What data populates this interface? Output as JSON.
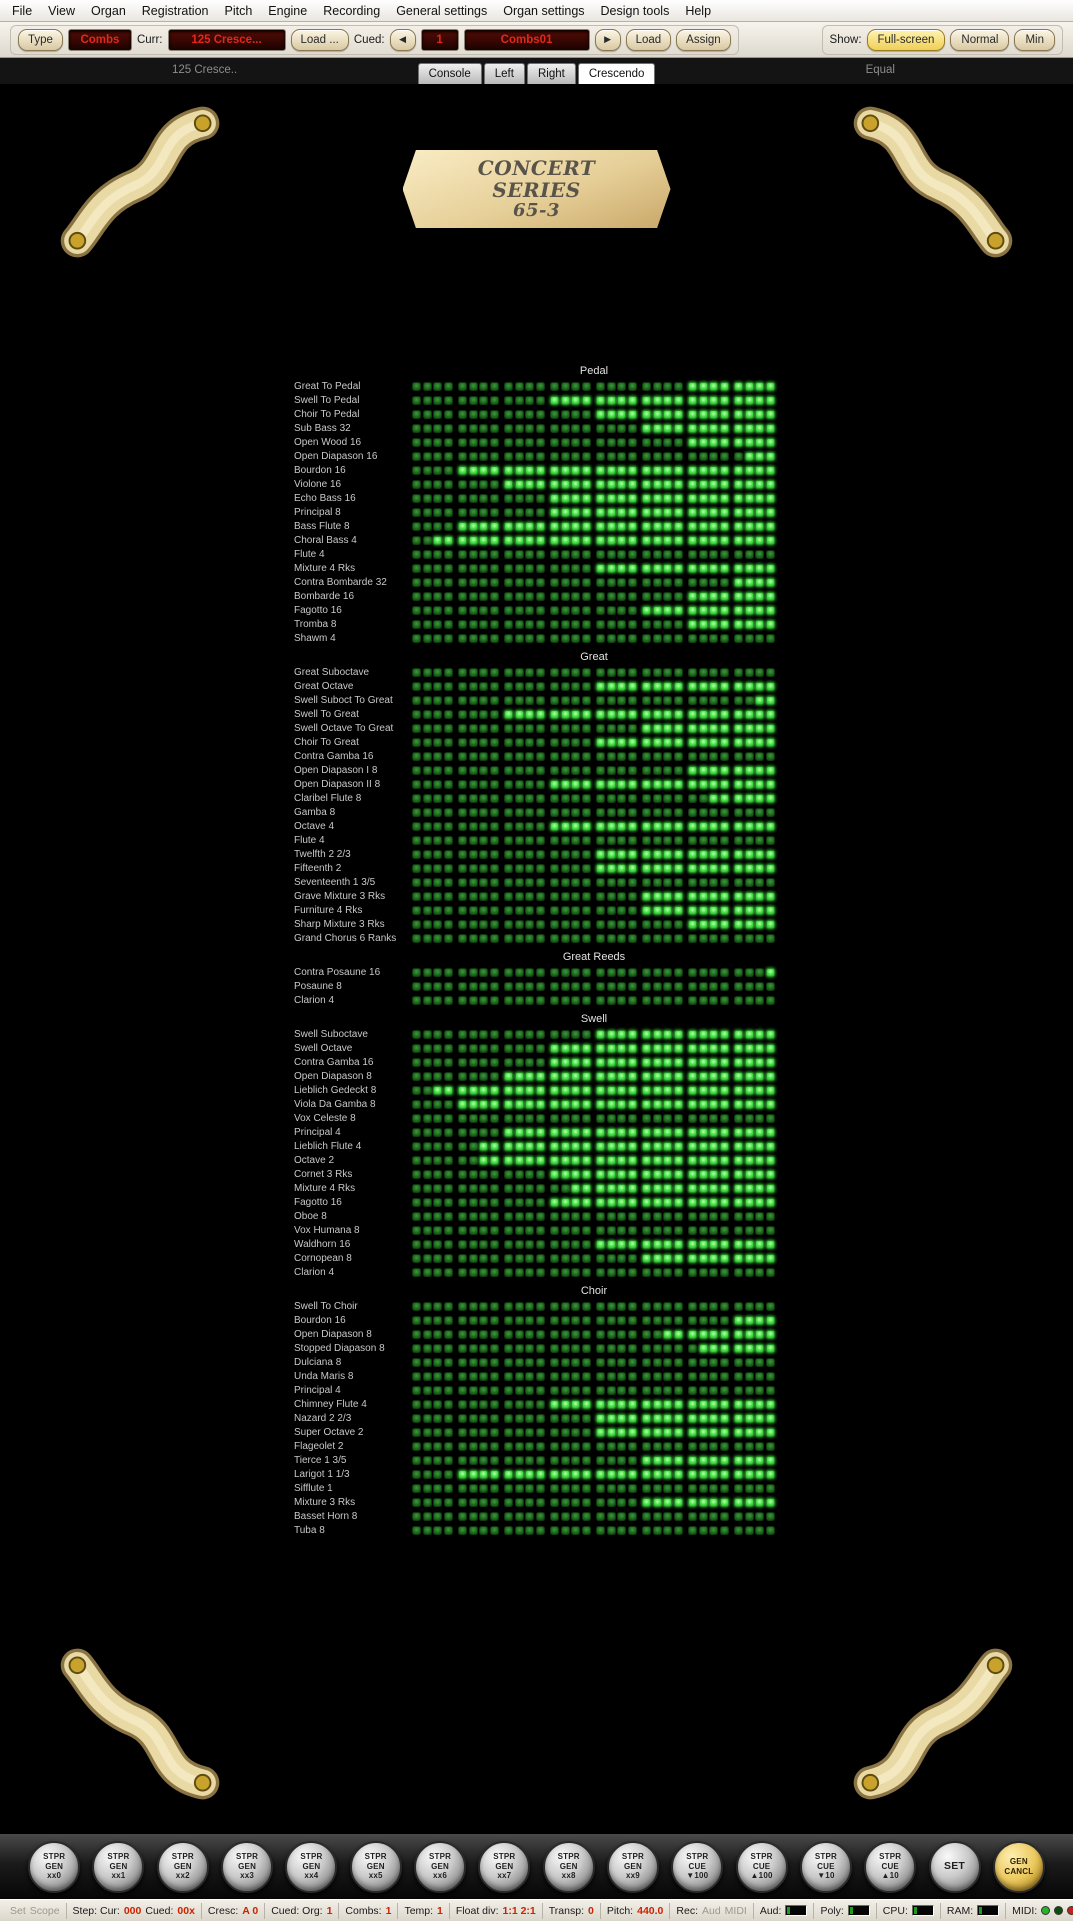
{
  "menu": {
    "items": [
      "File",
      "View",
      "Organ",
      "Registration",
      "Pitch",
      "Engine",
      "Recording",
      "General settings",
      "Organ settings",
      "Design tools",
      "Help"
    ]
  },
  "toolbar": {
    "type_button": "Type",
    "mode_display": "Combs",
    "curr_label": "Curr:",
    "curr_value": "125 Cresce...",
    "load_browse_button": "Load ...",
    "cued_label": "Cued:",
    "prev_icon": "◀",
    "cued_number": "1",
    "cued_name": "Combs01",
    "next_icon": "▶",
    "load_button": "Load",
    "assign_button": "Assign",
    "show_label": "Show:",
    "show_options": [
      "Full-screen",
      "Normal",
      "Min"
    ],
    "show_selected_index": 0
  },
  "tabbar": {
    "left_text": "125 Cresce..",
    "tabs": [
      "Console",
      "Left",
      "Right",
      "Crescendo"
    ],
    "selected": "Crescendo",
    "right_text": "Equal"
  },
  "plaque": {
    "lines": [
      "CONCERT",
      "SERIES",
      "65-3"
    ]
  },
  "crescendo": {
    "stages": 32,
    "on_color": "#52e852",
    "off_color": "#1f6b1f",
    "sections": [
      {
        "name": "Pedal",
        "stops": [
          {
            "label": "Great To Pedal",
            "on_from": 25
          },
          {
            "label": "Swell To Pedal",
            "on_from": 13
          },
          {
            "label": "Choir To Pedal",
            "on_from": 17
          },
          {
            "label": "Sub Bass 32",
            "on_from": 21
          },
          {
            "label": "Open Wood 16",
            "on_from": 25
          },
          {
            "label": "Open Diapason 16",
            "on_from": 30
          },
          {
            "label": "Bourdon 16",
            "on_from": 5
          },
          {
            "label": "Violone 16",
            "on_from": 9
          },
          {
            "label": "Echo Bass 16",
            "on_from": 13
          },
          {
            "label": "Principal 8",
            "on_from": 13
          },
          {
            "label": "Bass Flute 8",
            "on_from": 5
          },
          {
            "label": "Choral Bass 4",
            "on_from": 3
          },
          {
            "label": "Flute 4",
            "on_from": 0
          },
          {
            "label": "Mixture 4 Rks",
            "on_from": 17
          },
          {
            "label": "Contra Bombarde 32",
            "on_from": 29
          },
          {
            "label": "Bombarde 16",
            "on_from": 25
          },
          {
            "label": "Fagotto 16",
            "on_from": 21
          },
          {
            "label": "Tromba 8",
            "on_from": 25
          },
          {
            "label": "Shawm 4",
            "on_from": 0
          }
        ]
      },
      {
        "name": "Great",
        "stops": [
          {
            "label": "Great Suboctave",
            "on_from": 0
          },
          {
            "label": "Great Octave",
            "on_from": 17
          },
          {
            "label": "Swell Suboct To Great",
            "on_from": 31
          },
          {
            "label": "Swell To Great",
            "on_from": 9
          },
          {
            "label": "Swell Octave To Great",
            "on_from": 21
          },
          {
            "label": "Choir To Great",
            "on_from": 17
          },
          {
            "label": "Contra Gamba 16",
            "on_from": 0
          },
          {
            "label": "Open Diapason I 8",
            "on_from": 25
          },
          {
            "label": "Open Diapason II 8",
            "on_from": 13
          },
          {
            "label": "Claribel Flute 8",
            "on_from": 27
          },
          {
            "label": "Gamba 8",
            "on_from": 0
          },
          {
            "label": "Octave 4",
            "on_from": 13
          },
          {
            "label": "Flute 4",
            "on_from": 0
          },
          {
            "label": "Twelfth 2 2/3",
            "on_from": 17
          },
          {
            "label": "Fifteenth 2",
            "on_from": 17
          },
          {
            "label": "Seventeenth 1 3/5",
            "on_from": 0
          },
          {
            "label": "Grave Mixture 3 Rks",
            "on_from": 21
          },
          {
            "label": "Furniture 4 Rks",
            "on_from": 21
          },
          {
            "label": "Sharp Mixture 3 Rks",
            "on_from": 25
          },
          {
            "label": "Grand Chorus 6 Ranks",
            "on_from": 0
          }
        ]
      },
      {
        "name": "Great Reeds",
        "stops": [
          {
            "label": "Contra Posaune 16",
            "on_from": 32
          },
          {
            "label": "Posaune 8",
            "on_from": 0
          },
          {
            "label": "Clarion 4",
            "on_from": 0
          }
        ]
      },
      {
        "name": "Swell",
        "stops": [
          {
            "label": "Swell Suboctave",
            "on_from": 17
          },
          {
            "label": "Swell Octave",
            "on_from": 13
          },
          {
            "label": "Contra Gamba 16",
            "on_from": 13
          },
          {
            "label": "Open Diapason 8",
            "on_from": 9
          },
          {
            "label": "Lieblich Gedeckt 8",
            "on_from": 3
          },
          {
            "label": "Viola Da Gamba 8",
            "on_from": 5
          },
          {
            "label": "Vox Celeste 8",
            "on_from": 0
          },
          {
            "label": "Principal 4",
            "on_from": 9
          },
          {
            "label": "Lieblich Flute 4",
            "on_from": 7
          },
          {
            "label": "Octave 2",
            "on_from": 7
          },
          {
            "label": "Cornet 3 Rks",
            "on_from": 13
          },
          {
            "label": "Mixture 4 Rks",
            "on_from": 15
          },
          {
            "label": "Fagotto 16",
            "on_from": 13
          },
          {
            "label": "Oboe 8",
            "on_from": 0
          },
          {
            "label": "Vox Humana 8",
            "on_from": 0
          },
          {
            "label": "Waldhorn 16",
            "on_from": 17
          },
          {
            "label": "Cornopean 8",
            "on_from": 21
          },
          {
            "label": "Clarion 4",
            "on_from": 0
          }
        ]
      },
      {
        "name": "Choir",
        "stops": [
          {
            "label": "Swell To Choir",
            "on_from": 0
          },
          {
            "label": "Bourdon 16",
            "on_from": 29
          },
          {
            "label": "Open Diapason 8",
            "on_from": 23
          },
          {
            "label": "Stopped Diapason 8",
            "on_from": 26
          },
          {
            "label": "Dulciana 8",
            "on_from": 0
          },
          {
            "label": "Unda Maris 8",
            "on_from": 0
          },
          {
            "label": "Principal 4",
            "on_from": 0
          },
          {
            "label": "Chimney Flute 4",
            "on_from": 13
          },
          {
            "label": "Nazard 2 2/3",
            "on_from": 17
          },
          {
            "label": "Super Octave 2",
            "on_from": 17
          },
          {
            "label": "Flageolet 2",
            "on_from": 0
          },
          {
            "label": "Tierce 1 3/5",
            "on_from": 21
          },
          {
            "label": "Larigot 1 1/3",
            "on_from": 5
          },
          {
            "label": "Sifflute 1",
            "on_from": 0
          },
          {
            "label": "Mixture 3 Rks",
            "on_from": 21
          },
          {
            "label": "Basset Horn 8",
            "on_from": 0
          },
          {
            "label": "Tuba 8",
            "on_from": 0
          }
        ]
      }
    ]
  },
  "bottom_bar": {
    "buttons": [
      {
        "lines": [
          "STPR",
          "GEN",
          "xx0"
        ]
      },
      {
        "lines": [
          "STPR",
          "GEN",
          "xx1"
        ]
      },
      {
        "lines": [
          "STPR",
          "GEN",
          "xx2"
        ]
      },
      {
        "lines": [
          "STPR",
          "GEN",
          "xx3"
        ]
      },
      {
        "lines": [
          "STPR",
          "GEN",
          "xx4"
        ]
      },
      {
        "lines": [
          "STPR",
          "GEN",
          "xx5"
        ]
      },
      {
        "lines": [
          "STPR",
          "GEN",
          "xx6"
        ]
      },
      {
        "lines": [
          "STPR",
          "GEN",
          "xx7"
        ]
      },
      {
        "lines": [
          "STPR",
          "GEN",
          "xx8"
        ]
      },
      {
        "lines": [
          "STPR",
          "GEN",
          "xx9"
        ]
      },
      {
        "lines": [
          "STPR",
          "CUE",
          "▼100"
        ]
      },
      {
        "lines": [
          "STPR",
          "CUE",
          "▲100"
        ]
      },
      {
        "lines": [
          "STPR",
          "CUE",
          "▼10"
        ]
      },
      {
        "lines": [
          "STPR",
          "CUE",
          "▲10"
        ]
      },
      {
        "lines": [
          "SET"
        ]
      },
      {
        "lines": [
          "GEN",
          "CANCL"
        ],
        "variant": "gold"
      }
    ]
  },
  "status_bar": {
    "segments": [
      {
        "parts": [
          {
            "t": "Set",
            "c": "dim"
          },
          {
            "t": "Scope",
            "c": "dim"
          }
        ]
      },
      {
        "parts": [
          {
            "t": "Step: Cur:",
            "c": "lab"
          },
          {
            "t": "000",
            "c": "val"
          },
          {
            "t": "Cued:",
            "c": "lab"
          },
          {
            "t": "00x",
            "c": "val"
          }
        ]
      },
      {
        "parts": [
          {
            "t": "Cresc:",
            "c": "lab"
          },
          {
            "t": "A 0",
            "c": "val"
          }
        ]
      },
      {
        "parts": [
          {
            "t": "Cued: Org:",
            "c": "lab"
          },
          {
            "t": "1",
            "c": "val"
          }
        ]
      },
      {
        "parts": [
          {
            "t": "Combs:",
            "c": "lab"
          },
          {
            "t": "1",
            "c": "val"
          }
        ]
      },
      {
        "parts": [
          {
            "t": "Temp:",
            "c": "lab"
          },
          {
            "t": "1",
            "c": "val"
          }
        ]
      },
      {
        "parts": [
          {
            "t": "Float div:",
            "c": "lab"
          },
          {
            "t": "1:1 2:1",
            "c": "val"
          }
        ]
      },
      {
        "parts": [
          {
            "t": "Transp:",
            "c": "lab"
          },
          {
            "t": "0",
            "c": "val"
          }
        ]
      },
      {
        "parts": [
          {
            "t": "Pitch:",
            "c": "lab"
          },
          {
            "t": "440.0",
            "c": "val"
          }
        ]
      },
      {
        "parts": [
          {
            "t": "Rec:",
            "c": "lab"
          },
          {
            "t": "Aud",
            "c": "dim"
          },
          {
            "t": "MIDI",
            "c": "dim"
          }
        ]
      },
      {
        "parts": [
          {
            "t": "Aud:",
            "c": "lab"
          }
        ],
        "indicator": "meter"
      },
      {
        "parts": [
          {
            "t": "Poly:",
            "c": "lab"
          }
        ],
        "indicator": "meter"
      },
      {
        "parts": [
          {
            "t": "CPU:",
            "c": "lab"
          }
        ],
        "indicator": "meter"
      },
      {
        "parts": [
          {
            "t": "RAM:",
            "c": "lab"
          }
        ],
        "indicator": "meter"
      },
      {
        "parts": [
          {
            "t": "MIDI:",
            "c": "lab"
          }
        ],
        "indicator": "dots"
      }
    ],
    "midi_dot_colors": [
      "#27b527",
      "#0d4d0d",
      "#c42020",
      "#d4a600"
    ]
  }
}
